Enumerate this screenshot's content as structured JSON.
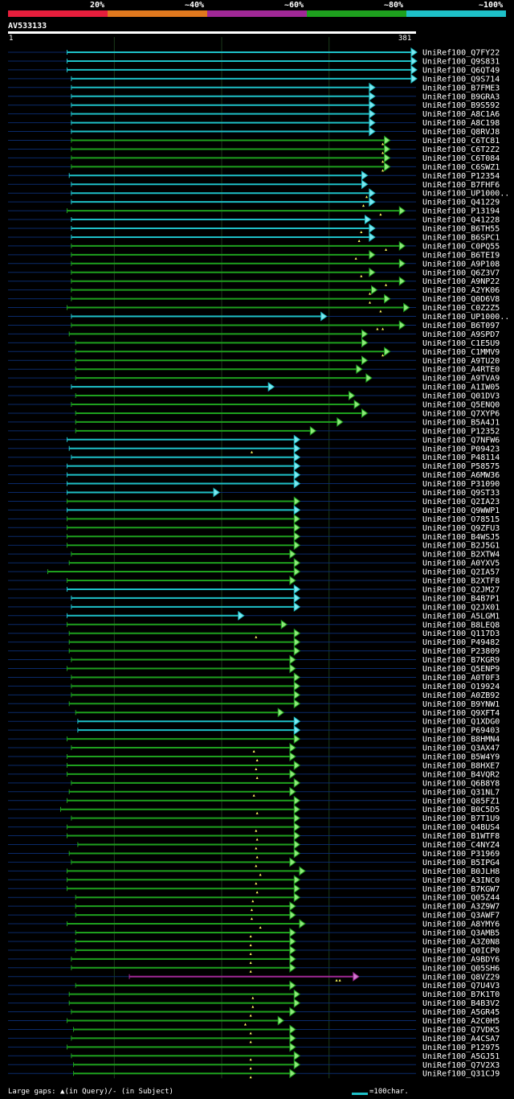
{
  "legend": {
    "segments": [
      {
        "label": "20%",
        "color": "#e61e3c"
      },
      {
        "label": "~40%",
        "color": "#e0781e"
      },
      {
        "label": "~60%",
        "color": "#a02896"
      },
      {
        "label": "~80%",
        "color": "#1ea01e"
      },
      {
        "label": "~100%",
        "color": "#1ec0c8"
      }
    ]
  },
  "query": {
    "name": "AV533133",
    "start": "1",
    "end": "381",
    "length": 381
  },
  "colors": {
    "cyan": "#1ec0c8",
    "green": "#1ea01e",
    "purple": "#a02896",
    "connector": "#0a2a6a",
    "gap": "#ffff60"
  },
  "hits": [
    {
      "label": "UniRef100_Q7FY22",
      "s": 56,
      "e": 381,
      "c": "cyan"
    },
    {
      "label": "UniRef100_Q9S831",
      "s": 56,
      "e": 381,
      "c": "cyan"
    },
    {
      "label": "UniRef100_Q6QT49",
      "s": 56,
      "e": 381,
      "c": "cyan"
    },
    {
      "label": "UniRef100_Q9S714",
      "s": 60,
      "e": 381,
      "c": "cyan"
    },
    {
      "label": "UniRef100_B7FME3",
      "s": 60,
      "e": 342,
      "c": "cyan"
    },
    {
      "label": "UniRef100_B9GRA3",
      "s": 60,
      "e": 342,
      "c": "cyan"
    },
    {
      "label": "UniRef100_B9S592",
      "s": 60,
      "e": 342,
      "c": "cyan"
    },
    {
      "label": "UniRef100_A8C1A6",
      "s": 60,
      "e": 342,
      "c": "cyan"
    },
    {
      "label": "UniRef100_A8C198",
      "s": 60,
      "e": 342,
      "c": "cyan"
    },
    {
      "label": "UniRef100_Q8RVJ8",
      "s": 60,
      "e": 342,
      "c": "cyan"
    },
    {
      "label": "UniRef100_C6TC81",
      "s": 60,
      "e": 356,
      "c": "green",
      "g": [
        350
      ]
    },
    {
      "label": "UniRef100_C6T2Z2",
      "s": 60,
      "e": 356,
      "c": "green",
      "g": [
        350
      ]
    },
    {
      "label": "UniRef100_C6T084",
      "s": 60,
      "e": 356,
      "c": "green",
      "g": [
        350
      ]
    },
    {
      "label": "UniRef100_C6SWZ1",
      "s": 60,
      "e": 356,
      "c": "green",
      "g": [
        350
      ]
    },
    {
      "label": "UniRef100_P12354",
      "s": 58,
      "e": 335,
      "c": "cyan"
    },
    {
      "label": "UniRef100_B7FHF6",
      "s": 60,
      "e": 335,
      "c": "cyan"
    },
    {
      "label": "UniRef100_UP1000..",
      "s": 60,
      "e": 342,
      "c": "cyan",
      "g": [
        335
      ]
    },
    {
      "label": "UniRef100_Q41229",
      "s": 60,
      "e": 342,
      "c": "cyan",
      "g": [
        332
      ]
    },
    {
      "label": "UniRef100_P13194",
      "s": 56,
      "e": 370,
      "c": "green",
      "g": [
        348
      ]
    },
    {
      "label": "UniRef100_Q41228",
      "s": 60,
      "e": 338,
      "c": "cyan"
    },
    {
      "label": "UniRef100_B6TH55",
      "s": 60,
      "e": 342,
      "c": "cyan",
      "g": [
        330
      ]
    },
    {
      "label": "UniRef100_B6SPC1",
      "s": 60,
      "e": 342,
      "c": "cyan",
      "g": [
        328
      ]
    },
    {
      "label": "UniRef100_C0PQ55",
      "s": 60,
      "e": 370,
      "c": "green",
      "g": [
        353
      ]
    },
    {
      "label": "UniRef100_B6TEI9",
      "s": 60,
      "e": 342,
      "c": "green",
      "g": [
        325
      ]
    },
    {
      "label": "UniRef100_A9P108",
      "s": 60,
      "e": 370,
      "c": "green"
    },
    {
      "label": "UniRef100_Q6Z3V7",
      "s": 60,
      "e": 342,
      "c": "green",
      "g": [
        330
      ]
    },
    {
      "label": "UniRef100_A9NP22",
      "s": 60,
      "e": 370,
      "c": "green",
      "g": [
        353
      ]
    },
    {
      "label": "UniRef100_A2YK06",
      "s": 60,
      "e": 344,
      "c": "green",
      "g": [
        338
      ]
    },
    {
      "label": "UniRef100_Q0D6V8",
      "s": 60,
      "e": 356,
      "c": "green",
      "g": [
        338
      ]
    },
    {
      "label": "UniRef100_C0Z2Z5",
      "s": 56,
      "e": 374,
      "c": "green",
      "g": [
        348
      ]
    },
    {
      "label": "UniRef100_UP1000..",
      "s": 60,
      "e": 297,
      "c": "cyan"
    },
    {
      "label": "UniRef100_B6T097",
      "s": 60,
      "e": 370,
      "c": "green",
      "g": [
        345,
        350
      ]
    },
    {
      "label": "UniRef100_A9SPD7",
      "s": 58,
      "e": 335,
      "c": "green"
    },
    {
      "label": "UniRef100_C1E5U9",
      "s": 64,
      "e": 335,
      "c": "green"
    },
    {
      "label": "UniRef100_C1MMV9",
      "s": 64,
      "e": 356,
      "c": "green",
      "g": [
        350
      ]
    },
    {
      "label": "UniRef100_A9TU20",
      "s": 64,
      "e": 335,
      "c": "green"
    },
    {
      "label": "UniRef100_A4RTE0",
      "s": 64,
      "e": 330,
      "c": "green"
    },
    {
      "label": "UniRef100_A9TVA9",
      "s": 64,
      "e": 339,
      "c": "green"
    },
    {
      "label": "UniRef100_A1IW05",
      "s": 60,
      "e": 248,
      "c": "cyan"
    },
    {
      "label": "UniRef100_Q01DV3",
      "s": 64,
      "e": 323,
      "c": "green"
    },
    {
      "label": "UniRef100_Q5ENQ0",
      "s": 60,
      "e": 328,
      "c": "green"
    },
    {
      "label": "UniRef100_Q7XYP6",
      "s": 64,
      "e": 335,
      "c": "green"
    },
    {
      "label": "UniRef100_B5A4J1",
      "s": 64,
      "e": 312,
      "c": "green"
    },
    {
      "label": "UniRef100_P12352",
      "s": 64,
      "e": 287,
      "c": "green"
    },
    {
      "label": "UniRef100_Q7NFW6",
      "s": 56,
      "e": 272,
      "c": "cyan"
    },
    {
      "label": "UniRef100_P09423",
      "s": 58,
      "e": 272,
      "c": "cyan",
      "g": [
        228
      ]
    },
    {
      "label": "UniRef100_P48114",
      "s": 60,
      "e": 272,
      "c": "cyan"
    },
    {
      "label": "UniRef100_P58575",
      "s": 56,
      "e": 272,
      "c": "cyan"
    },
    {
      "label": "UniRef100_A6MW36",
      "s": 56,
      "e": 272,
      "c": "cyan"
    },
    {
      "label": "UniRef100_P31090",
      "s": 56,
      "e": 272,
      "c": "cyan"
    },
    {
      "label": "UniRef100_Q9ST33",
      "s": 56,
      "e": 197,
      "c": "cyan"
    },
    {
      "label": "UniRef100_Q2IA23",
      "s": 56,
      "e": 272,
      "c": "green"
    },
    {
      "label": "UniRef100_Q9WWP1",
      "s": 56,
      "e": 272,
      "c": "cyan"
    },
    {
      "label": "UniRef100_O78515",
      "s": 56,
      "e": 272,
      "c": "green"
    },
    {
      "label": "UniRef100_Q9ZFU3",
      "s": 56,
      "e": 272,
      "c": "green"
    },
    {
      "label": "UniRef100_B4WSJ5",
      "s": 56,
      "e": 272,
      "c": "green"
    },
    {
      "label": "UniRef100_B2J5G1",
      "s": 56,
      "e": 272,
      "c": "green"
    },
    {
      "label": "UniRef100_B2XTW4",
      "s": 60,
      "e": 268,
      "c": "green"
    },
    {
      "label": "UniRef100_A0YXV5",
      "s": 58,
      "e": 272,
      "c": "green"
    },
    {
      "label": "UniRef100_Q2IA57",
      "s": 38,
      "e": 272,
      "c": "green"
    },
    {
      "label": "UniRef100_B2XTF8",
      "s": 56,
      "e": 268,
      "c": "green"
    },
    {
      "label": "UniRef100_Q2JM27",
      "s": 56,
      "e": 272,
      "c": "cyan"
    },
    {
      "label": "UniRef100_B4B7P1",
      "s": 60,
      "e": 272,
      "c": "cyan"
    },
    {
      "label": "UniRef100_Q2JX01",
      "s": 60,
      "e": 272,
      "c": "cyan"
    },
    {
      "label": "UniRef100_A5LGM1",
      "s": 56,
      "e": 220,
      "c": "cyan"
    },
    {
      "label": "UniRef100_B8LEQ8",
      "s": 56,
      "e": 260,
      "c": "green"
    },
    {
      "label": "UniRef100_Q117D3",
      "s": 58,
      "e": 272,
      "c": "green",
      "g": [
        232
      ]
    },
    {
      "label": "UniRef100_P49482",
      "s": 58,
      "e": 272,
      "c": "green"
    },
    {
      "label": "UniRef100_P23809",
      "s": 58,
      "e": 272,
      "c": "green"
    },
    {
      "label": "UniRef100_B7KGR9",
      "s": 60,
      "e": 268,
      "c": "green"
    },
    {
      "label": "UniRef100_Q5ENP9",
      "s": 56,
      "e": 268,
      "c": "green"
    },
    {
      "label": "UniRef100_A0T0F3",
      "s": 60,
      "e": 272,
      "c": "green"
    },
    {
      "label": "UniRef100_O19924",
      "s": 60,
      "e": 272,
      "c": "green"
    },
    {
      "label": "UniRef100_A0ZB92",
      "s": 60,
      "e": 272,
      "c": "green"
    },
    {
      "label": "UniRef100_B9YNW1",
      "s": 58,
      "e": 272,
      "c": "green"
    },
    {
      "label": "UniRef100_Q9XFT4",
      "s": 64,
      "e": 257,
      "c": "green"
    },
    {
      "label": "UniRef100_Q1XDG0",
      "s": 66,
      "e": 272,
      "c": "cyan"
    },
    {
      "label": "UniRef100_P69403",
      "s": 66,
      "e": 272,
      "c": "cyan"
    },
    {
      "label": "UniRef100_B8HMN4",
      "s": 56,
      "e": 272,
      "c": "green"
    },
    {
      "label": "UniRef100_Q3AX47",
      "s": 60,
      "e": 268,
      "c": "green",
      "g": [
        230
      ]
    },
    {
      "label": "UniRef100_B5W4Y9",
      "s": 56,
      "e": 268,
      "c": "green",
      "g": [
        233
      ]
    },
    {
      "label": "UniRef100_B8HXE7",
      "s": 56,
      "e": 272,
      "c": "green",
      "g": [
        232
      ]
    },
    {
      "label": "UniRef100_B4VQR2",
      "s": 56,
      "e": 268,
      "c": "green",
      "g": [
        233
      ]
    },
    {
      "label": "UniRef100_Q6B8Y8",
      "s": 60,
      "e": 272,
      "c": "green"
    },
    {
      "label": "UniRef100_Q31NL7",
      "s": 58,
      "e": 268,
      "c": "green",
      "g": [
        230
      ]
    },
    {
      "label": "UniRef100_Q85FZ1",
      "s": 56,
      "e": 272,
      "c": "green"
    },
    {
      "label": "UniRef100_B0C5D5",
      "s": 50,
      "e": 272,
      "c": "green",
      "g": [
        233
      ]
    },
    {
      "label": "UniRef100_B7T1U9",
      "s": 60,
      "e": 272,
      "c": "green"
    },
    {
      "label": "UniRef100_Q4BUS4",
      "s": 56,
      "e": 272,
      "c": "green",
      "g": [
        232
      ]
    },
    {
      "label": "UniRef100_B1WTF8",
      "s": 56,
      "e": 272,
      "c": "green",
      "g": [
        233
      ]
    },
    {
      "label": "UniRef100_C4NYZ4",
      "s": 66,
      "e": 272,
      "c": "green",
      "g": [
        232
      ]
    },
    {
      "label": "UniRef100_P31969",
      "s": 58,
      "e": 272,
      "c": "green",
      "g": [
        233
      ]
    },
    {
      "label": "UniRef100_B5IPG4",
      "s": 60,
      "e": 268,
      "c": "green",
      "g": [
        232
      ]
    },
    {
      "label": "UniRef100_B0JLH8",
      "s": 56,
      "e": 277,
      "c": "green",
      "g": [
        236
      ]
    },
    {
      "label": "UniRef100_A3INC0",
      "s": 56,
      "e": 272,
      "c": "green",
      "g": [
        232
      ]
    },
    {
      "label": "UniRef100_B7KGW7",
      "s": 56,
      "e": 272,
      "c": "green",
      "g": [
        233
      ]
    },
    {
      "label": "UniRef100_Q05Z44",
      "s": 64,
      "e": 272,
      "c": "green",
      "g": [
        229
      ]
    },
    {
      "label": "UniRef100_A3Z9W7",
      "s": 64,
      "e": 268,
      "c": "green",
      "g": [
        228
      ]
    },
    {
      "label": "UniRef100_Q3AWF7",
      "s": 64,
      "e": 268,
      "c": "green",
      "g": [
        228
      ]
    },
    {
      "label": "UniRef100_A8YMY6",
      "s": 56,
      "e": 277,
      "c": "green",
      "g": [
        236
      ]
    },
    {
      "label": "UniRef100_Q3AMB5",
      "s": 64,
      "e": 268,
      "c": "green",
      "g": [
        227
      ]
    },
    {
      "label": "UniRef100_A3Z0N8",
      "s": 64,
      "e": 268,
      "c": "green",
      "g": [
        227
      ]
    },
    {
      "label": "UniRef100_Q0ICP0",
      "s": 64,
      "e": 268,
      "c": "green",
      "g": [
        227
      ]
    },
    {
      "label": "UniRef100_A9BDY6",
      "s": 60,
      "e": 268,
      "c": "green",
      "g": [
        227
      ]
    },
    {
      "label": "UniRef100_Q05SH6",
      "s": 60,
      "e": 268,
      "c": "green",
      "g": [
        227
      ]
    },
    {
      "label": "UniRef100_Q8VZ29",
      "s": 114,
      "e": 327,
      "c": "purple",
      "g": [
        307,
        310
      ]
    },
    {
      "label": "UniRef100_Q7U4V3",
      "s": 64,
      "e": 268,
      "c": "green"
    },
    {
      "label": "UniRef100_B7K1T0",
      "s": 58,
      "e": 272,
      "c": "green",
      "g": [
        229
      ]
    },
    {
      "label": "UniRef100_B4B3V2",
      "s": 58,
      "e": 272,
      "c": "green",
      "g": [
        229
      ]
    },
    {
      "label": "UniRef100_A5GR45",
      "s": 60,
      "e": 268,
      "c": "green",
      "g": [
        227
      ]
    },
    {
      "label": "UniRef100_A2C0H5",
      "s": 56,
      "e": 257,
      "c": "green",
      "g": [
        222
      ]
    },
    {
      "label": "UniRef100_Q7VDK5",
      "s": 62,
      "e": 268,
      "c": "green",
      "g": [
        227
      ]
    },
    {
      "label": "UniRef100_A4CSA7",
      "s": 60,
      "e": 268,
      "c": "green",
      "g": [
        227
      ]
    },
    {
      "label": "UniRef100_P12975",
      "s": 56,
      "e": 268,
      "c": "green"
    },
    {
      "label": "UniRef100_A5GJ51",
      "s": 60,
      "e": 272,
      "c": "green",
      "g": [
        227
      ]
    },
    {
      "label": "UniRef100_Q7V2X3",
      "s": 62,
      "e": 272,
      "c": "green",
      "g": [
        227
      ]
    },
    {
      "label": "UniRef100_Q31CJ9",
      "s": 62,
      "e": 268,
      "c": "green",
      "g": [
        227
      ]
    }
  ],
  "footer": {
    "gap_legend": "Large gaps: ▲(in Query)/- (in Subject)",
    "scale_label": "=100char."
  }
}
